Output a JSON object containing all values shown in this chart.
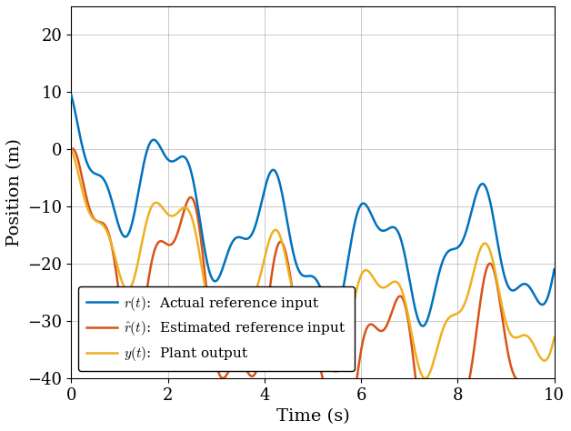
{
  "title": "",
  "xlabel": "Time (s)",
  "ylabel": "Position (m)",
  "xlim": [
    0,
    10
  ],
  "ylim": [
    -40,
    25
  ],
  "yticks": [
    -40,
    -30,
    -20,
    -10,
    0,
    10,
    20
  ],
  "xticks": [
    0,
    2,
    4,
    6,
    8,
    10
  ],
  "color_r": "#0072BD",
  "color_rhat": "#D95319",
  "color_y": "#EDB120",
  "linewidth": 1.8,
  "legend_labels": [
    "$r(t)$:  Actual reference input",
    "$\\hat{r}(t)$:  Estimated reference input",
    "$y(t)$:  Plant output"
  ],
  "grid_color": "#b0b0b0",
  "background_color": "#ffffff"
}
